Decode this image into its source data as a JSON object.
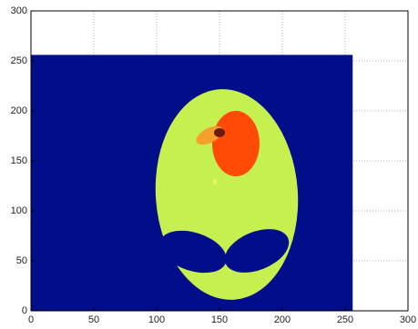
{
  "chart_data": {
    "type": "image",
    "xlim": [
      0,
      300
    ],
    "ylim": [
      0,
      300
    ],
    "xticks": [
      0,
      50,
      100,
      150,
      200,
      250,
      300
    ],
    "yticks": [
      0,
      50,
      100,
      150,
      200,
      250,
      300
    ],
    "grid": true,
    "image_extent": {
      "x": [
        0,
        256
      ],
      "y": [
        0,
        256
      ]
    },
    "background_color": "#000e8a"
  }
}
